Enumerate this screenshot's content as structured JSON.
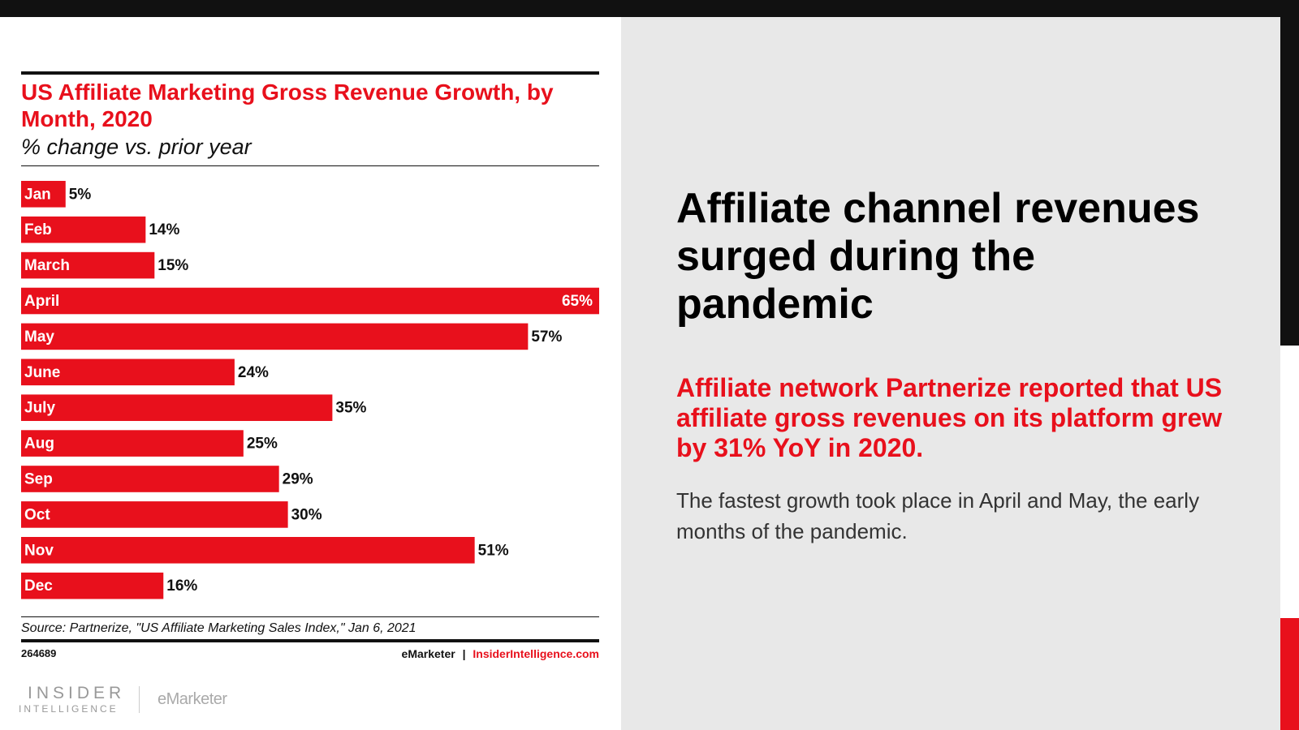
{
  "chart_data": {
    "type": "hbar",
    "title": "US Affiliate Marketing Gross Revenue Growth, by Month, 2020",
    "subtitle": "% change vs. prior year",
    "categories": [
      "Jan",
      "Feb",
      "March",
      "April",
      "May",
      "June",
      "July",
      "Aug",
      "Sep",
      "Oct",
      "Nov",
      "Dec"
    ],
    "values": [
      5,
      14,
      15,
      65,
      57,
      24,
      35,
      25,
      29,
      30,
      51,
      16
    ],
    "value_labels": [
      "5%",
      "14%",
      "15%",
      "65%",
      "57%",
      "24%",
      "35%",
      "25%",
      "29%",
      "30%",
      "51%",
      "16%"
    ],
    "color": "#e8101c",
    "xlim": [
      0,
      65
    ],
    "source": "Source: Partnerize, \"US Affiliate Marketing Sales Index,\" Jan 6, 2021",
    "chart_id": "264689",
    "credit_brand": "eMarketer",
    "credit_separator": "|",
    "credit_site": "InsiderIntelligence.com"
  },
  "logo": {
    "insider": "INSIDER",
    "intelligence": "INTELLIGENCE",
    "emarketer": "eMarketer"
  },
  "slide": {
    "headline": "Affiliate channel revenues surged during the pandemic",
    "highlight": "Affiliate network Partnerize reported that US affiliate gross revenues on its platform grew by 31% YoY in 2020.",
    "body": "The fastest growth took place in April and May, the early months of the pandemic."
  }
}
